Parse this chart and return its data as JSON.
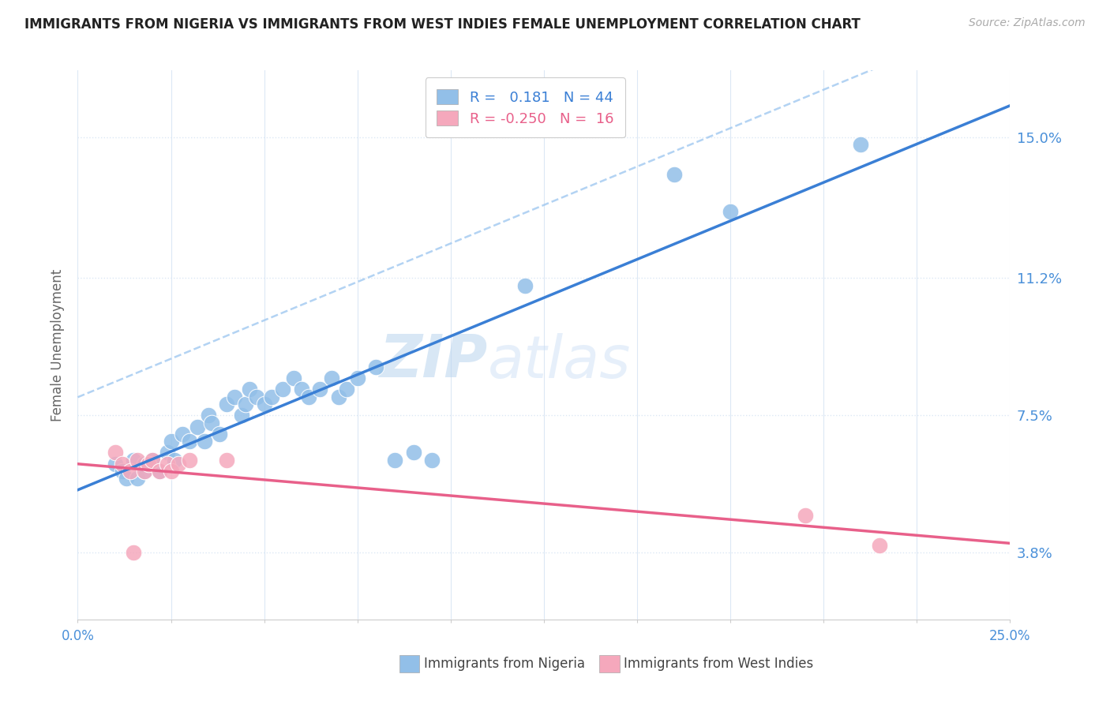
{
  "title": "IMMIGRANTS FROM NIGERIA VS IMMIGRANTS FROM WEST INDIES FEMALE UNEMPLOYMENT CORRELATION CHART",
  "source": "Source: ZipAtlas.com",
  "xlabel_nigeria": "Immigrants from Nigeria",
  "xlabel_westindies": "Immigrants from West Indies",
  "ylabel": "Female Unemployment",
  "xlim": [
    0.0,
    0.25
  ],
  "ylim": [
    0.02,
    0.168
  ],
  "ytick_vals": [
    0.038,
    0.075,
    0.112,
    0.15
  ],
  "ytick_labels": [
    "3.8%",
    "7.5%",
    "11.2%",
    "15.0%"
  ],
  "xtick_vals": [
    0.0,
    0.025,
    0.05,
    0.075,
    0.1,
    0.125,
    0.15,
    0.175,
    0.2,
    0.225,
    0.25
  ],
  "xtick_label_vals": [
    0.0,
    0.25
  ],
  "nigeria_color": "#92bfe8",
  "westindies_color": "#f5a8bc",
  "trend_nigeria_color": "#3a7fd5",
  "trend_westindies_color": "#e8608a",
  "trend_nigeria_dashed_color": "#a0c8f0",
  "r_nigeria": 0.181,
  "n_nigeria": 44,
  "r_westindies": -0.25,
  "n_westindies": 16,
  "nigeria_x": [
    0.01,
    0.012,
    0.013,
    0.015,
    0.016,
    0.018,
    0.018,
    0.02,
    0.022,
    0.024,
    0.025,
    0.026,
    0.028,
    0.03,
    0.032,
    0.034,
    0.035,
    0.036,
    0.038,
    0.04,
    0.042,
    0.044,
    0.045,
    0.046,
    0.048,
    0.05,
    0.052,
    0.055,
    0.058,
    0.06,
    0.062,
    0.065,
    0.068,
    0.07,
    0.072,
    0.075,
    0.08,
    0.085,
    0.09,
    0.095,
    0.12,
    0.16,
    0.175,
    0.21
  ],
  "nigeria_y": [
    0.062,
    0.06,
    0.058,
    0.063,
    0.058,
    0.062,
    0.06,
    0.063,
    0.06,
    0.065,
    0.068,
    0.063,
    0.07,
    0.068,
    0.072,
    0.068,
    0.075,
    0.073,
    0.07,
    0.078,
    0.08,
    0.075,
    0.078,
    0.082,
    0.08,
    0.078,
    0.08,
    0.082,
    0.085,
    0.082,
    0.08,
    0.082,
    0.085,
    0.08,
    0.082,
    0.085,
    0.088,
    0.063,
    0.065,
    0.063,
    0.11,
    0.14,
    0.13,
    0.148
  ],
  "westindies_x": [
    0.01,
    0.012,
    0.014,
    0.015,
    0.016,
    0.018,
    0.019,
    0.02,
    0.022,
    0.024,
    0.025,
    0.027,
    0.03,
    0.04,
    0.195,
    0.215
  ],
  "westindies_y": [
    0.065,
    0.062,
    0.06,
    0.038,
    0.063,
    0.06,
    0.062,
    0.063,
    0.06,
    0.062,
    0.06,
    0.062,
    0.063,
    0.063,
    0.048,
    0.04
  ],
  "watermark": "ZIPatlas",
  "background_color": "#ffffff",
  "grid_color": "#dce8f5",
  "spine_color": "#cccccc"
}
